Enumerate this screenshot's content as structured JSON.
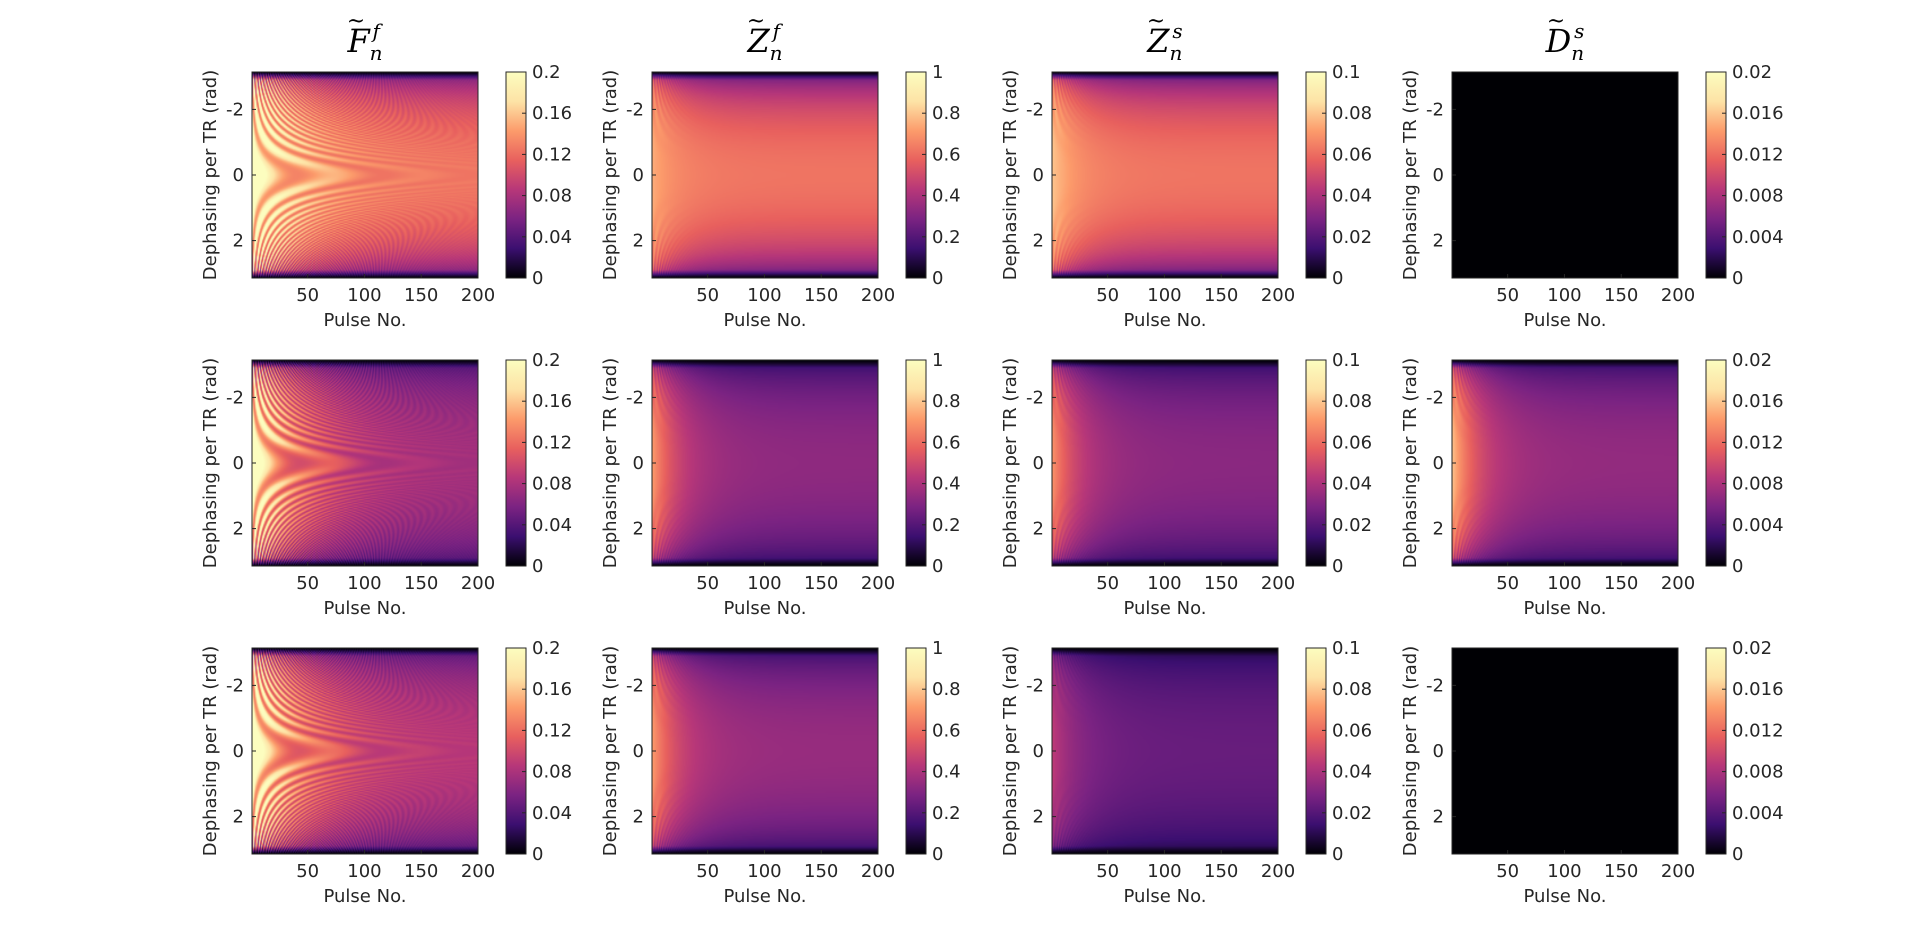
{
  "figure": {
    "column_titles": [
      {
        "base": "F",
        "sup": "f",
        "sub": "n"
      },
      {
        "base": "Z",
        "sup": "f",
        "sub": "n"
      },
      {
        "base": "Z",
        "sup": "s",
        "sub": "n"
      },
      {
        "base": "D",
        "sup": "s",
        "sub": "n"
      }
    ],
    "colormap_stops": [
      "#000004",
      "#1b0c41",
      "#4a0c6b",
      "#781c6d",
      "#a52c60",
      "#cf4446",
      "#ed6925",
      "#fb9b06",
      "#f7d13d",
      "#fcffa4"
    ],
    "display_colormap_stops": [
      "#000004",
      "#3b0f70",
      "#7b2382",
      "#b73779",
      "#e8605e",
      "#fc9b6b",
      "#fde3a6",
      "#fcfdbf"
    ]
  },
  "chart_data": [
    {
      "type": "heatmap",
      "row": 0,
      "col": 0,
      "xlabel": "Pulse No.",
      "ylabel": "Dephasing per TR (rad)",
      "xlim": [
        1,
        200
      ],
      "ylim": [
        -3.14,
        3.14
      ],
      "xticks": [
        50,
        100,
        150,
        200
      ],
      "yticks": [
        -2,
        0,
        2
      ],
      "y_reversed": true,
      "clim": [
        0,
        0.2
      ],
      "cticks": [
        "0",
        "0.04",
        "0.08",
        "0.12",
        "0.16",
        "0.2"
      ],
      "steady_center": 0.125,
      "steady_edge": 0.01,
      "transient_peak": 0.2,
      "ripple": "strong"
    },
    {
      "type": "heatmap",
      "row": 0,
      "col": 1,
      "xlabel": "Pulse No.",
      "ylabel": "Dephasing per TR (rad)",
      "xlim": [
        1,
        200
      ],
      "ylim": [
        -3.14,
        3.14
      ],
      "xticks": [
        50,
        100,
        150,
        200
      ],
      "yticks": [
        -2,
        0,
        2
      ],
      "y_reversed": true,
      "clim": [
        0,
        1
      ],
      "cticks": [
        "0",
        "0.2",
        "0.4",
        "0.6",
        "0.8",
        "1"
      ],
      "steady_center": 0.62,
      "steady_edge": 0.0,
      "transient_peak": 0.75,
      "ripple": "weak"
    },
    {
      "type": "heatmap",
      "row": 0,
      "col": 2,
      "xlabel": "Pulse No.",
      "ylabel": "Dephasing per TR (rad)",
      "xlim": [
        1,
        200
      ],
      "ylim": [
        -3.14,
        3.14
      ],
      "xticks": [
        50,
        100,
        150,
        200
      ],
      "yticks": [
        -2,
        0,
        2
      ],
      "y_reversed": true,
      "clim": [
        0,
        0.1
      ],
      "cticks": [
        "0",
        "0.02",
        "0.04",
        "0.06",
        "0.08",
        "0.1"
      ],
      "steady_center": 0.062,
      "steady_edge": 0.0,
      "transient_peak": 0.08,
      "ripple": "weak"
    },
    {
      "type": "heatmap",
      "row": 0,
      "col": 3,
      "xlabel": "Pulse No.",
      "ylabel": "Dephasing per TR (rad)",
      "xlim": [
        1,
        200
      ],
      "ylim": [
        -3.14,
        3.14
      ],
      "xticks": [
        50,
        100,
        150,
        200
      ],
      "yticks": [
        -2,
        0,
        2
      ],
      "y_reversed": true,
      "clim": [
        0,
        0.02
      ],
      "cticks": [
        "0",
        "0.004",
        "0.008",
        "0.012",
        "0.016",
        "0.02"
      ],
      "steady_center": 0.0,
      "steady_edge": 0.0,
      "transient_peak": 0.0,
      "ripple": "none"
    },
    {
      "type": "heatmap",
      "row": 1,
      "col": 0,
      "xlabel": "Pulse No.",
      "ylabel": "Dephasing per TR (rad)",
      "xlim": [
        1,
        200
      ],
      "ylim": [
        -3.14,
        3.14
      ],
      "xticks": [
        50,
        100,
        150,
        200
      ],
      "yticks": [
        -2,
        0,
        2
      ],
      "y_reversed": true,
      "clim": [
        0,
        0.2
      ],
      "cticks": [
        "0",
        "0.04",
        "0.08",
        "0.12",
        "0.16",
        "0.2"
      ],
      "steady_center": 0.075,
      "steady_edge": 0.01,
      "transient_peak": 0.2,
      "ripple": "strong"
    },
    {
      "type": "heatmap",
      "row": 1,
      "col": 1,
      "xlabel": "Pulse No.",
      "ylabel": "Dephasing per TR (rad)",
      "xlim": [
        1,
        200
      ],
      "ylim": [
        -3.14,
        3.14
      ],
      "xticks": [
        50,
        100,
        150,
        200
      ],
      "yticks": [
        -2,
        0,
        2
      ],
      "y_reversed": true,
      "clim": [
        0,
        1
      ],
      "cticks": [
        "0",
        "0.2",
        "0.4",
        "0.6",
        "0.8",
        "1"
      ],
      "steady_center": 0.33,
      "steady_edge": 0.0,
      "transient_peak": 0.72,
      "ripple": "weak"
    },
    {
      "type": "heatmap",
      "row": 1,
      "col": 2,
      "xlabel": "Pulse No.",
      "ylabel": "Dephasing per TR (rad)",
      "xlim": [
        1,
        200
      ],
      "ylim": [
        -3.14,
        3.14
      ],
      "xticks": [
        50,
        100,
        150,
        200
      ],
      "yticks": [
        -2,
        0,
        2
      ],
      "y_reversed": true,
      "clim": [
        0,
        0.1
      ],
      "cticks": [
        "0",
        "0.02",
        "0.04",
        "0.06",
        "0.08",
        "0.1"
      ],
      "steady_center": 0.032,
      "steady_edge": 0.0,
      "transient_peak": 0.07,
      "ripple": "weak"
    },
    {
      "type": "heatmap",
      "row": 1,
      "col": 3,
      "xlabel": "Pulse No.",
      "ylabel": "Dephasing per TR (rad)",
      "xlim": [
        1,
        200
      ],
      "ylim": [
        -3.14,
        3.14
      ],
      "xticks": [
        50,
        100,
        150,
        200
      ],
      "yticks": [
        -2,
        0,
        2
      ],
      "y_reversed": true,
      "clim": [
        0,
        0.02
      ],
      "cticks": [
        "0",
        "0.004",
        "0.008",
        "0.012",
        "0.016",
        "0.02"
      ],
      "steady_center": 0.0068,
      "steady_edge": 0.0,
      "transient_peak": 0.016,
      "ripple": "weak"
    },
    {
      "type": "heatmap",
      "row": 2,
      "col": 0,
      "xlabel": "Pulse No.",
      "ylabel": "Dephasing per TR (rad)",
      "xlim": [
        1,
        200
      ],
      "ylim": [
        -3.14,
        3.14
      ],
      "xticks": [
        50,
        100,
        150,
        200
      ],
      "yticks": [
        -2,
        0,
        2
      ],
      "y_reversed": true,
      "clim": [
        0,
        0.2
      ],
      "cticks": [
        "0",
        "0.04",
        "0.08",
        "0.12",
        "0.16",
        "0.2"
      ],
      "steady_center": 0.085,
      "steady_edge": 0.01,
      "transient_peak": 0.2,
      "ripple": "strong"
    },
    {
      "type": "heatmap",
      "row": 2,
      "col": 1,
      "xlabel": "Pulse No.",
      "ylabel": "Dephasing per TR (rad)",
      "xlim": [
        1,
        200
      ],
      "ylim": [
        -3.14,
        3.14
      ],
      "xticks": [
        50,
        100,
        150,
        200
      ],
      "yticks": [
        -2,
        0,
        2
      ],
      "y_reversed": true,
      "clim": [
        0,
        1
      ],
      "cticks": [
        "0",
        "0.2",
        "0.4",
        "0.6",
        "0.8",
        "1"
      ],
      "steady_center": 0.35,
      "steady_edge": 0.0,
      "transient_peak": 0.72,
      "ripple": "weak"
    },
    {
      "type": "heatmap",
      "row": 2,
      "col": 2,
      "xlabel": "Pulse No.",
      "ylabel": "Dephasing per TR (rad)",
      "xlim": [
        1,
        200
      ],
      "ylim": [
        -3.14,
        3.14
      ],
      "xticks": [
        50,
        100,
        150,
        200
      ],
      "yticks": [
        -2,
        0,
        2
      ],
      "y_reversed": true,
      "clim": [
        0,
        0.1
      ],
      "cticks": [
        "0",
        "0.02",
        "0.04",
        "0.06",
        "0.08",
        "0.1"
      ],
      "steady_center": 0.024,
      "steady_edge": 0.0,
      "transient_peak": 0.045,
      "ripple": "weak"
    },
    {
      "type": "heatmap",
      "row": 2,
      "col": 3,
      "xlabel": "Pulse No.",
      "ylabel": "Dephasing per TR (rad)",
      "xlim": [
        1,
        200
      ],
      "ylim": [
        -3.14,
        3.14
      ],
      "xticks": [
        50,
        100,
        150,
        200
      ],
      "yticks": [
        -2,
        0,
        2
      ],
      "y_reversed": true,
      "clim": [
        0,
        0.02
      ],
      "cticks": [
        "0",
        "0.004",
        "0.008",
        "0.012",
        "0.016",
        "0.02"
      ],
      "steady_center": 0.0,
      "steady_edge": 0.0,
      "transient_peak": 0.0,
      "ripple": "none"
    }
  ]
}
